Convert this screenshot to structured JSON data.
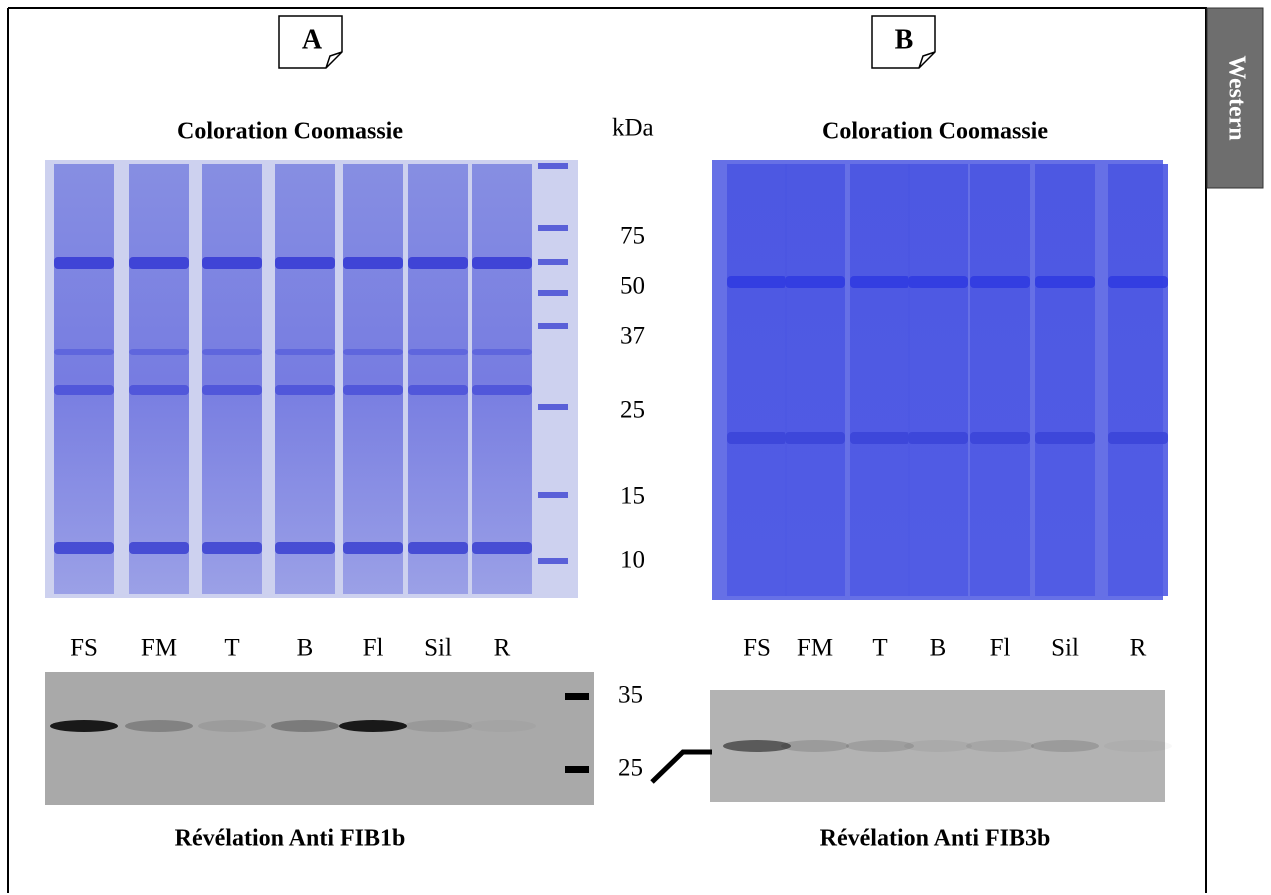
{
  "panels": [
    {
      "label": "A",
      "title": "Coloration Coomassie",
      "lanes": [
        "FS",
        "FM",
        "T",
        "B",
        "Fl",
        "Sil",
        "R"
      ],
      "caption": "Révélation Anti FIB1b"
    },
    {
      "label": "B",
      "title": "Coloration Coomassie",
      "lanes": [
        "FS",
        "FM",
        "T",
        "B",
        "Fl",
        "Sil",
        "R"
      ],
      "caption": "Révélation Anti FIB3b"
    }
  ],
  "markers": {
    "unit": "kDa",
    "gel": [
      "75",
      "50",
      "37",
      "25",
      "15",
      "10"
    ],
    "western": [
      "35",
      "25"
    ]
  },
  "tab": "Western"
}
